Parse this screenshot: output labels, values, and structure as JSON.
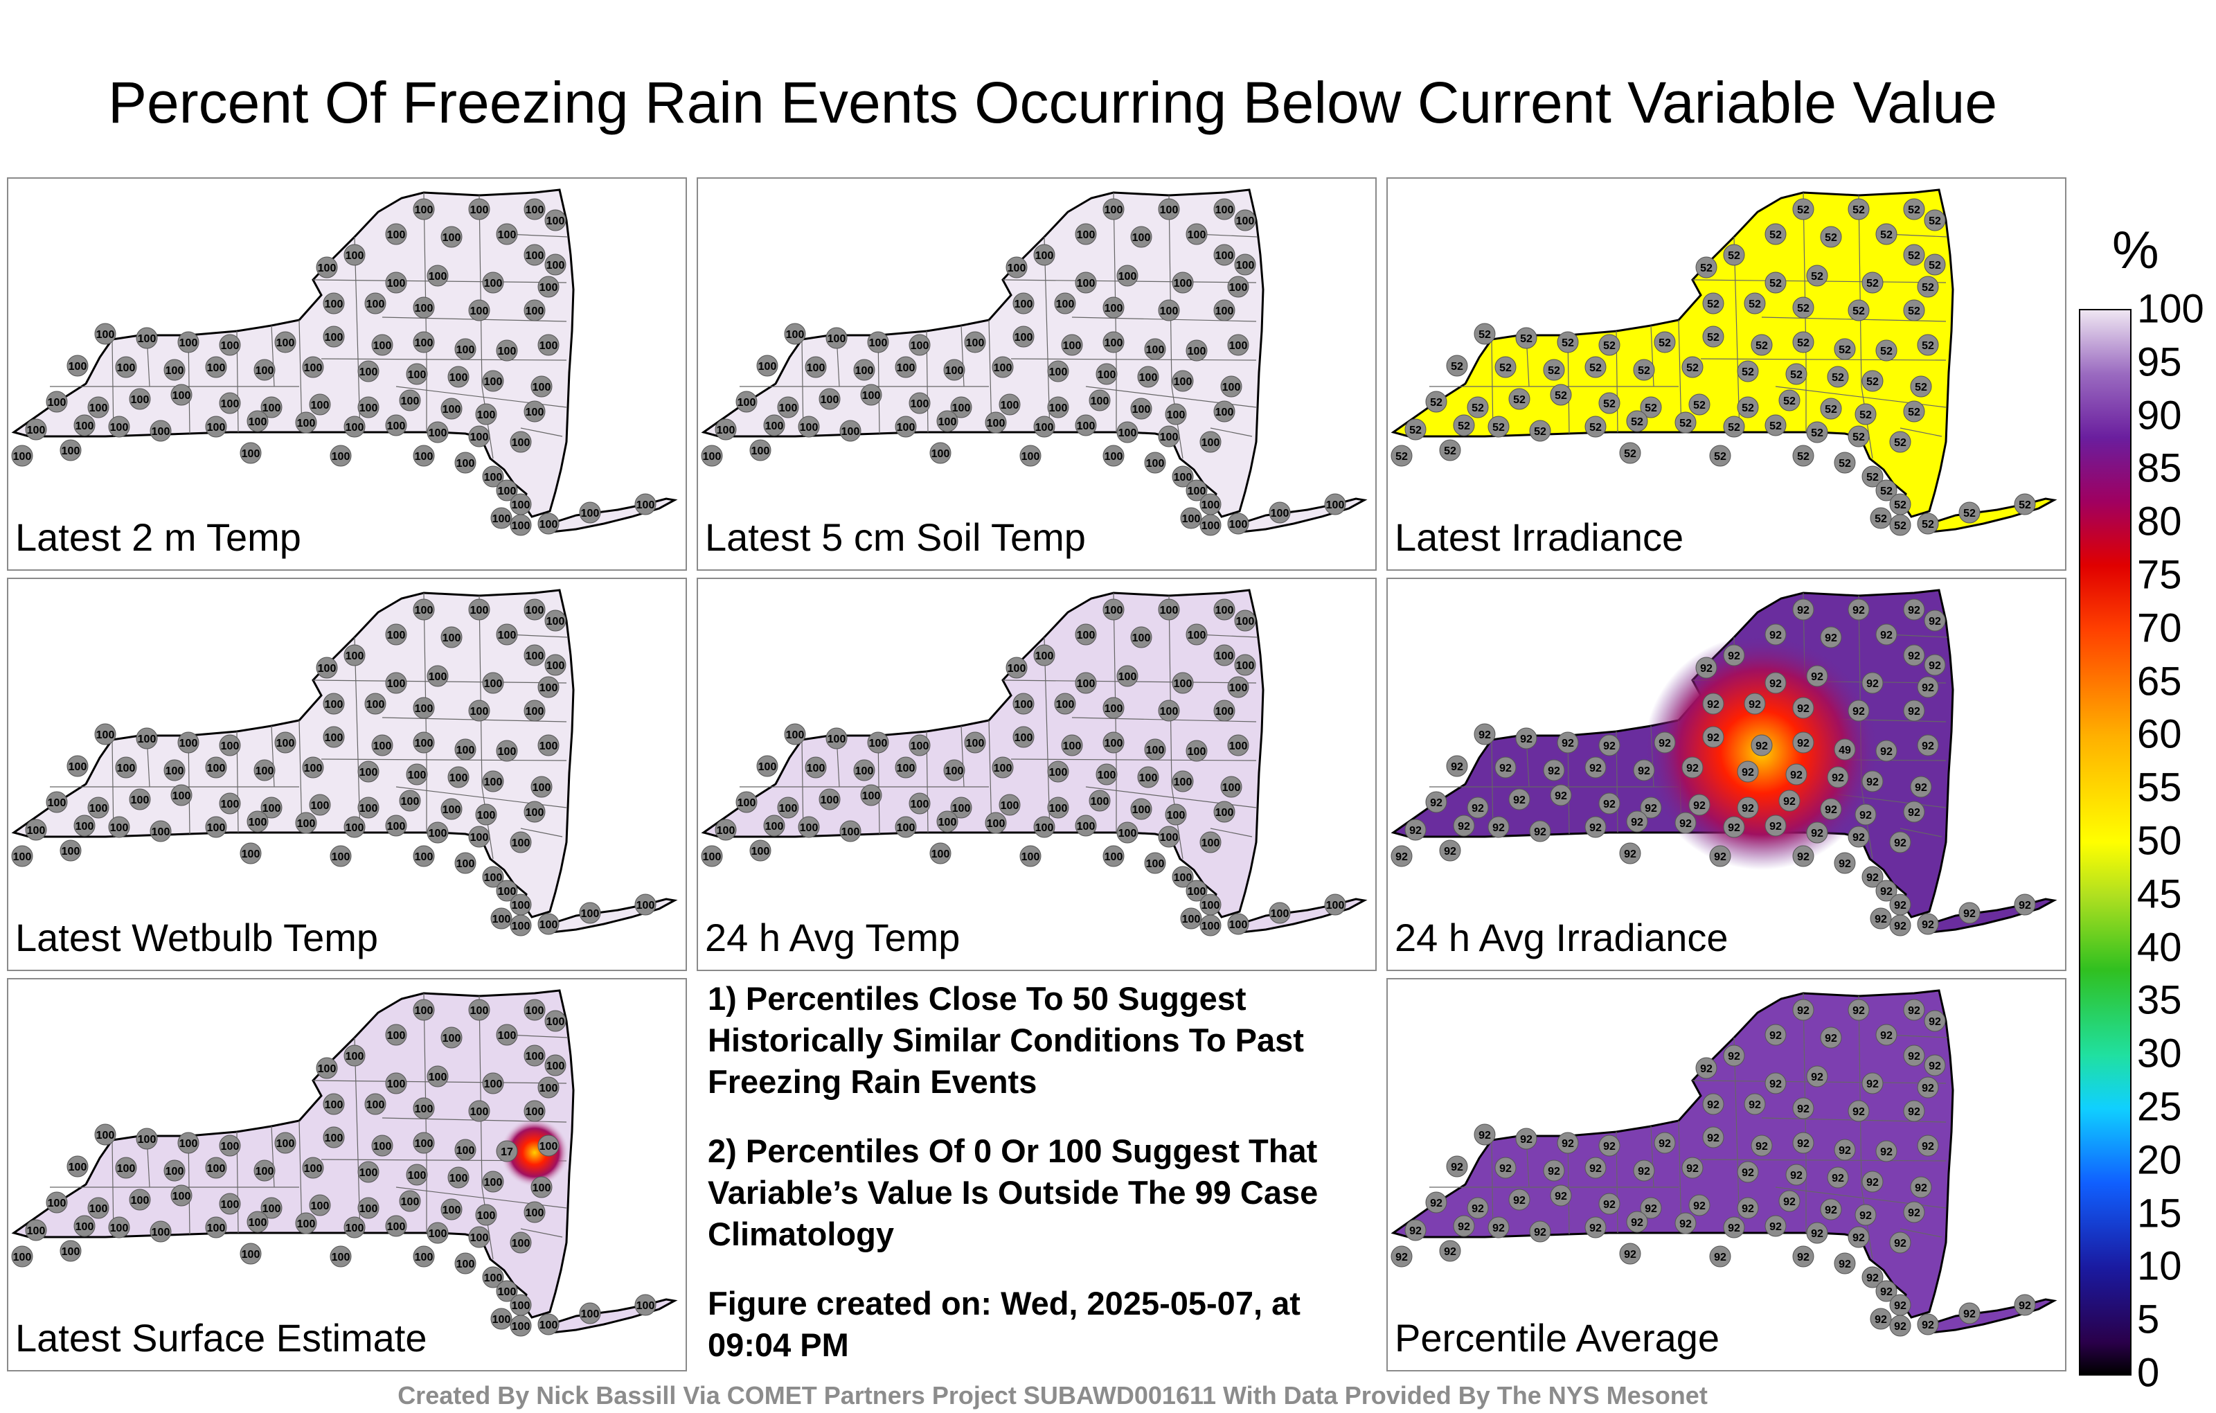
{
  "title": "Percent Of Freezing Rain Events Occurring Below Current Variable Value",
  "panels": [
    {
      "label": "Latest 2 m Temp",
      "fill": "#efe8f3",
      "value": 100,
      "hotspot": null
    },
    {
      "label": "Latest 5 cm Soil Temp",
      "fill": "#efe8f3",
      "value": 100,
      "hotspot": null
    },
    {
      "label": "Latest Irradiance",
      "fill": "#ffff00",
      "value": 52,
      "hotspot": null
    },
    {
      "label": "Latest Wetbulb Temp",
      "fill": "#efe8f3",
      "value": 100,
      "hotspot": null
    },
    {
      "label": "24 h Avg Temp",
      "fill": "#e6d8ef",
      "value": 100,
      "hotspot": null
    },
    {
      "label": "24 h Avg Irradiance",
      "fill": "#6a2d9e",
      "value": 92,
      "hotspot": {
        "value": 49
      }
    },
    {
      "label": "Latest Surface Estimate",
      "fill": "#e6d8ef",
      "value": 100,
      "hotspot": {
        "value": 17
      }
    },
    {
      "label": "Percentile Average",
      "fill": "#7d3fb0",
      "value": 92,
      "hotspot": null
    }
  ],
  "notes": [
    "1) Percentiles Close To 50 Suggest Historically Similar Conditions To Past Freezing Rain Events",
    "2) Percentiles Of 0 Or 100 Suggest That Variable’s Value Is Outside The 99 Case Climatology",
    "Figure created on: Wed, 2025-05-07, at 09:04 PM"
  ],
  "footer": "Created By Nick Bassill Via COMET Partners Project SUBAWD001611 With Data Provided By The NYS Mesonet",
  "colorbar": {
    "unit": "%",
    "ticks": [
      "0",
      "5",
      "10",
      "15",
      "20",
      "25",
      "30",
      "35",
      "40",
      "45",
      "50",
      "55",
      "60",
      "65",
      "70",
      "75",
      "80",
      "85",
      "90",
      "95",
      "100"
    ]
  }
}
